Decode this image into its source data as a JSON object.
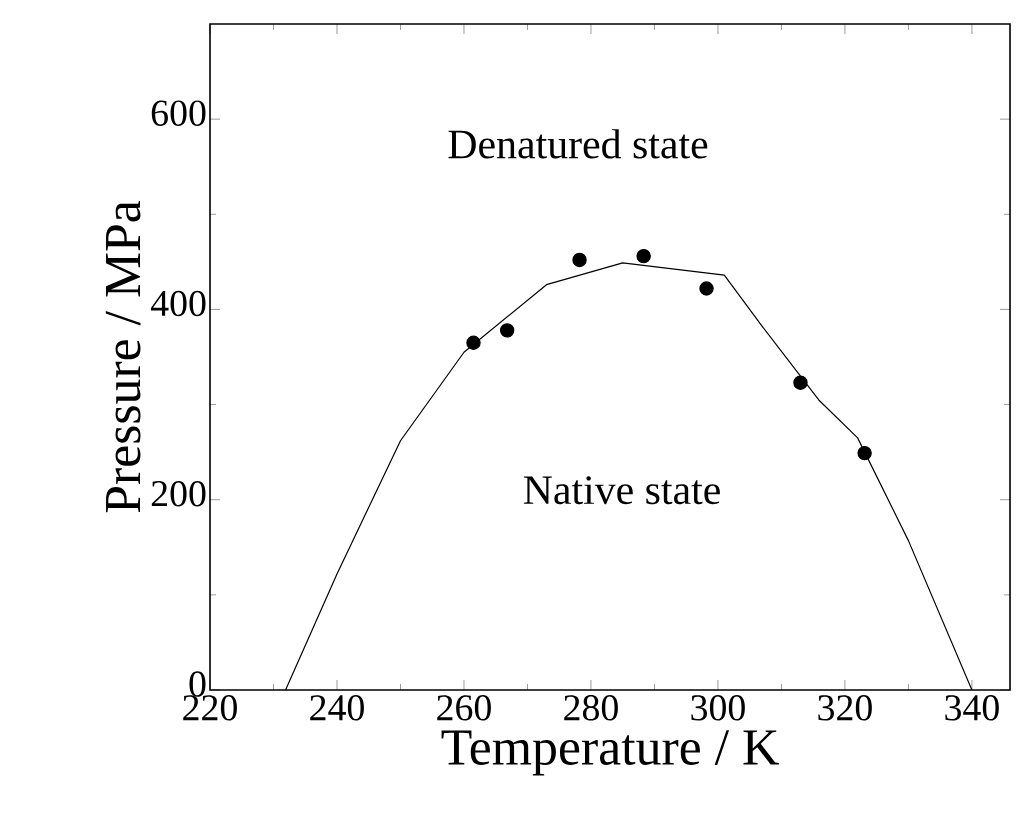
{
  "chart_data": {
    "type": "scatter",
    "xlabel": "Temperature / K",
    "ylabel": "Pressure / MPa",
    "xlim": [
      220,
      346
    ],
    "ylim": [
      0,
      700
    ],
    "xticks": [
      220,
      240,
      260,
      280,
      300,
      320,
      340
    ],
    "yticks": [
      0,
      200,
      400,
      600
    ],
    "annotations": [
      "Denatured state",
      "Native state"
    ],
    "marker": "circle",
    "series": [
      {
        "color": "#000000",
        "x": [
          261.5,
          266.8,
          278.2,
          288.3,
          298.2,
          313.0,
          323.1
        ],
        "values": [
          365,
          378,
          452,
          456,
          422,
          323,
          249
        ]
      },
      {
        "type": "line",
        "color": "#000000",
        "marker": "none",
        "x": [
          231.9,
          240,
          250,
          260,
          273,
          285,
          301,
          307,
          316,
          322,
          330,
          340
        ],
        "values": [
          0,
          122,
          262,
          355,
          426,
          449,
          436,
          382,
          304,
          265,
          157,
          0
        ]
      }
    ]
  }
}
